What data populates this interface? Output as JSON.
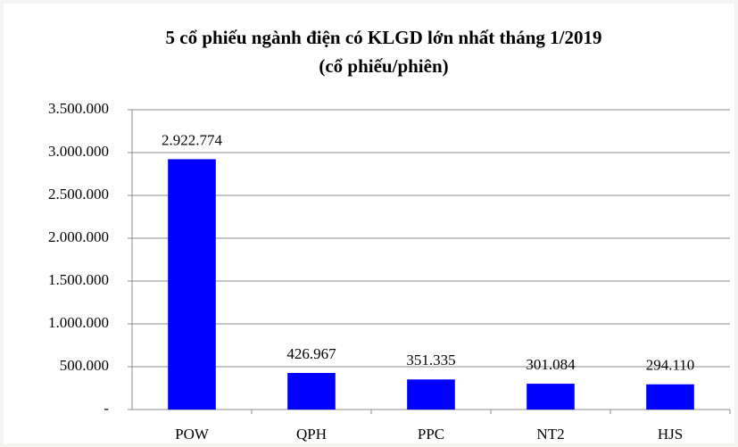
{
  "chart_data": {
    "type": "bar",
    "title": "5 cổ phiếu ngành điện có KLGD lớn nhất tháng 1/2019",
    "subtitle": "(cổ phiếu/phiên)",
    "categories": [
      "POW",
      "QPH",
      "PPC",
      "NT2",
      "HJS"
    ],
    "values": [
      2922774,
      426967,
      351335,
      301084,
      294110
    ],
    "value_labels": [
      "2.922.774",
      "426.967",
      "351.335",
      "301.084",
      "294.110"
    ],
    "color": "#0000ff",
    "ylim": [
      0,
      3500000
    ],
    "yticks": [
      {
        "value": 0,
        "label": "-"
      },
      {
        "value": 500000,
        "label": "500.000"
      },
      {
        "value": 1000000,
        "label": "1.000.000"
      },
      {
        "value": 1500000,
        "label": "1.500.000"
      },
      {
        "value": 2000000,
        "label": "2.000.000"
      },
      {
        "value": 2500000,
        "label": "2.500.000"
      },
      {
        "value": 3000000,
        "label": "3.000.000"
      },
      {
        "value": 3500000,
        "label": "3.500.000"
      }
    ],
    "grid": true
  }
}
